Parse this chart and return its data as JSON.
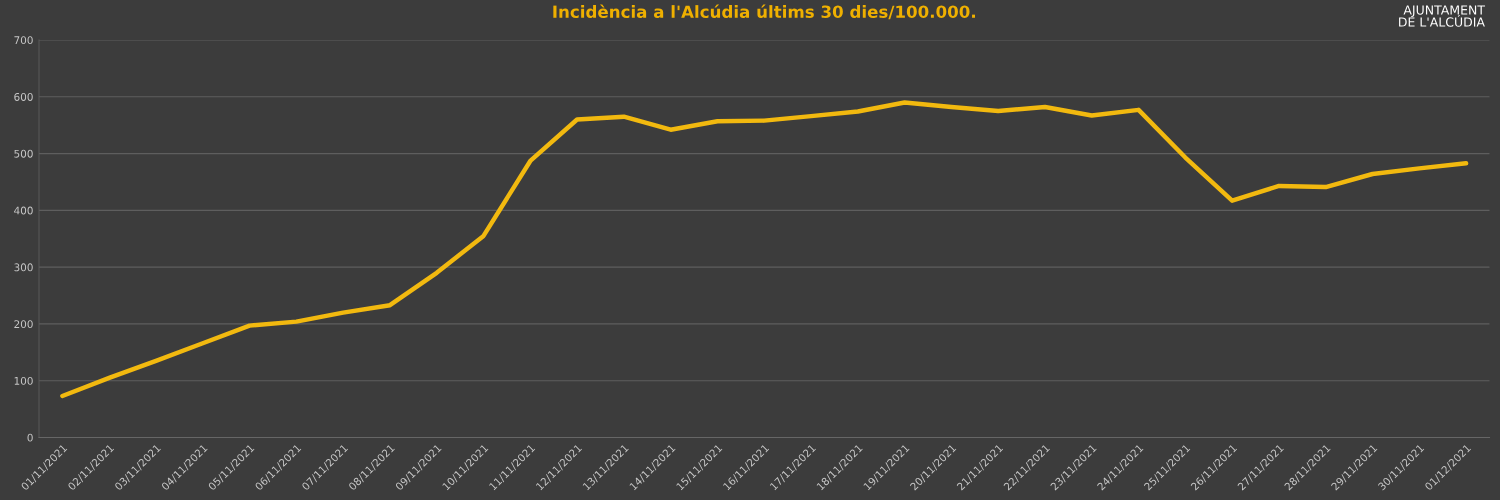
{
  "chart_data": {
    "type": "line",
    "title": "Incidència a l'Alcúdia últims 30 dies/100.000.",
    "categories": [
      "01/11/2021",
      "02/11/2021",
      "03/11/2021",
      "04/11/2021",
      "05/11/2021",
      "06/11/2021",
      "07/11/2021",
      "08/11/2021",
      "09/11/2021",
      "10/11/2021",
      "11/11/2021",
      "12/11/2021",
      "13/11/2021",
      "14/11/2021",
      "15/11/2021",
      "16/11/2021",
      "17/11/2021",
      "18/11/2021",
      "19/11/2021",
      "20/11/2021",
      "21/11/2021",
      "22/11/2021",
      "23/11/2021",
      "24/11/2021",
      "25/11/2021",
      "26/11/2021",
      "27/11/2021",
      "28/11/2021",
      "29/11/2021",
      "30/11/2021",
      "01/12/2021"
    ],
    "series": [
      {
        "color": "#f2b90f",
        "values": [
          73,
          105,
          135,
          166,
          197,
          204,
          220,
          233,
          290,
          355,
          487,
          560,
          565,
          542,
          557,
          558,
          566,
          574,
          590,
          582,
          575,
          582,
          567,
          577,
          493,
          417,
          443,
          441,
          464,
          474,
          483
        ]
      }
    ],
    "ylim": [
      0,
      700
    ],
    "yticks": [
      0,
      100,
      200,
      300,
      400,
      500,
      600,
      700
    ],
    "grid": "y",
    "line_style": "solid",
    "annotations": [
      "AJUNTAMENT\nDE L'ALCÚDIA"
    ]
  }
}
